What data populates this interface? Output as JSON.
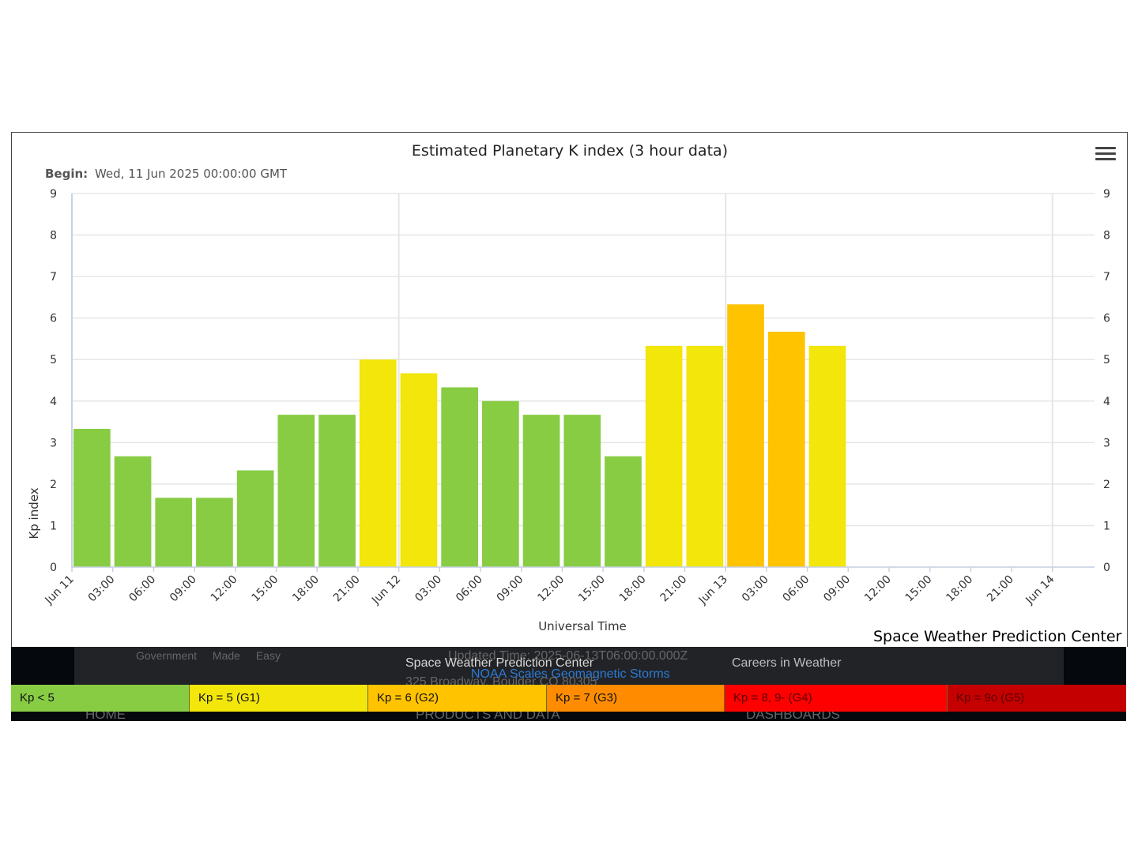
{
  "chart_data": {
    "type": "bar",
    "title": "Estimated Planetary K index (3 hour data)",
    "subtitle_label": "Begin:",
    "subtitle_value": "Wed, 11 Jun 2025 00:00:00 GMT",
    "xlabel": "Universal Time",
    "ylabel": "Kp index",
    "ylim": [
      0,
      9
    ],
    "y_ticks": [
      "0",
      "1",
      "2",
      "3",
      "4",
      "5",
      "6",
      "7",
      "8",
      "9"
    ],
    "x_tick_labels": [
      "Jun 11",
      "03:00",
      "06:00",
      "09:00",
      "12:00",
      "15:00",
      "18:00",
      "21:00",
      "Jun 12",
      "03:00",
      "06:00",
      "09:00",
      "12:00",
      "15:00",
      "18:00",
      "21:00",
      "Jun 13",
      "03:00",
      "06:00",
      "09:00",
      "12:00",
      "15:00",
      "18:00",
      "21:00",
      "Jun 14"
    ],
    "categories": [
      "Jun 11 00:00",
      "Jun 11 03:00",
      "Jun 11 06:00",
      "Jun 11 09:00",
      "Jun 11 12:00",
      "Jun 11 15:00",
      "Jun 11 18:00",
      "Jun 11 21:00",
      "Jun 12 00:00",
      "Jun 12 03:00",
      "Jun 12 06:00",
      "Jun 12 09:00",
      "Jun 12 12:00",
      "Jun 12 15:00",
      "Jun 12 18:00",
      "Jun 12 21:00",
      "Jun 13 00:00",
      "Jun 13 03:00",
      "Jun 13 06:00"
    ],
    "values": [
      3.33,
      2.67,
      1.67,
      1.67,
      2.33,
      3.67,
      3.67,
      5.0,
      4.67,
      4.33,
      4.0,
      3.67,
      3.67,
      2.67,
      5.33,
      5.33,
      6.33,
      5.67,
      5.33
    ],
    "bar_levels": [
      "lt5",
      "lt5",
      "lt5",
      "lt5",
      "lt5",
      "lt5",
      "lt5",
      "g1",
      "g1",
      "lt5",
      "lt5",
      "lt5",
      "lt5",
      "lt5",
      "g1",
      "g1",
      "g2",
      "g2",
      "g1"
    ],
    "grid": true,
    "legend": "bottom"
  },
  "colors": {
    "lt5": "#88cc44",
    "g1": "#f2e60a",
    "g2": "#ffc300",
    "g3": "#ff8c00",
    "g4": "#ff0000",
    "g5": "#c40000",
    "grid": "#e6e6e6",
    "axis_text": "#333333"
  },
  "menu_icon": "hamburger-menu-icon",
  "credit": "Space Weather Prediction Center",
  "scale": {
    "title": "NOAA Scales Geomagnetic Storms",
    "items": [
      {
        "label": "Kp < 5",
        "level": "lt5"
      },
      {
        "label": "Kp = 5 (G1)",
        "level": "g1"
      },
      {
        "label": "Kp = 6 (G2)",
        "level": "g2"
      },
      {
        "label": "Kp = 7 (G3)",
        "level": "g3"
      },
      {
        "label": "Kp = 8, 9- (G4)",
        "level": "g4"
      },
      {
        "label": "Kp = 9o (G5)",
        "level": "g5"
      }
    ]
  },
  "updated_time": "Updated Time: 2025-06-13T06:00:00.000Z",
  "background_page": {
    "logo_text": "Government Made Easy",
    "address_line1": "Space Weather Prediction Center",
    "address_line2": "325 Broadway, Boulder CO 80305",
    "careers": "Careers in Weather",
    "nav_home": "HOME",
    "nav_products": "PRODUCTS AND DATA",
    "nav_dashboards": "DASHBOARDS"
  }
}
